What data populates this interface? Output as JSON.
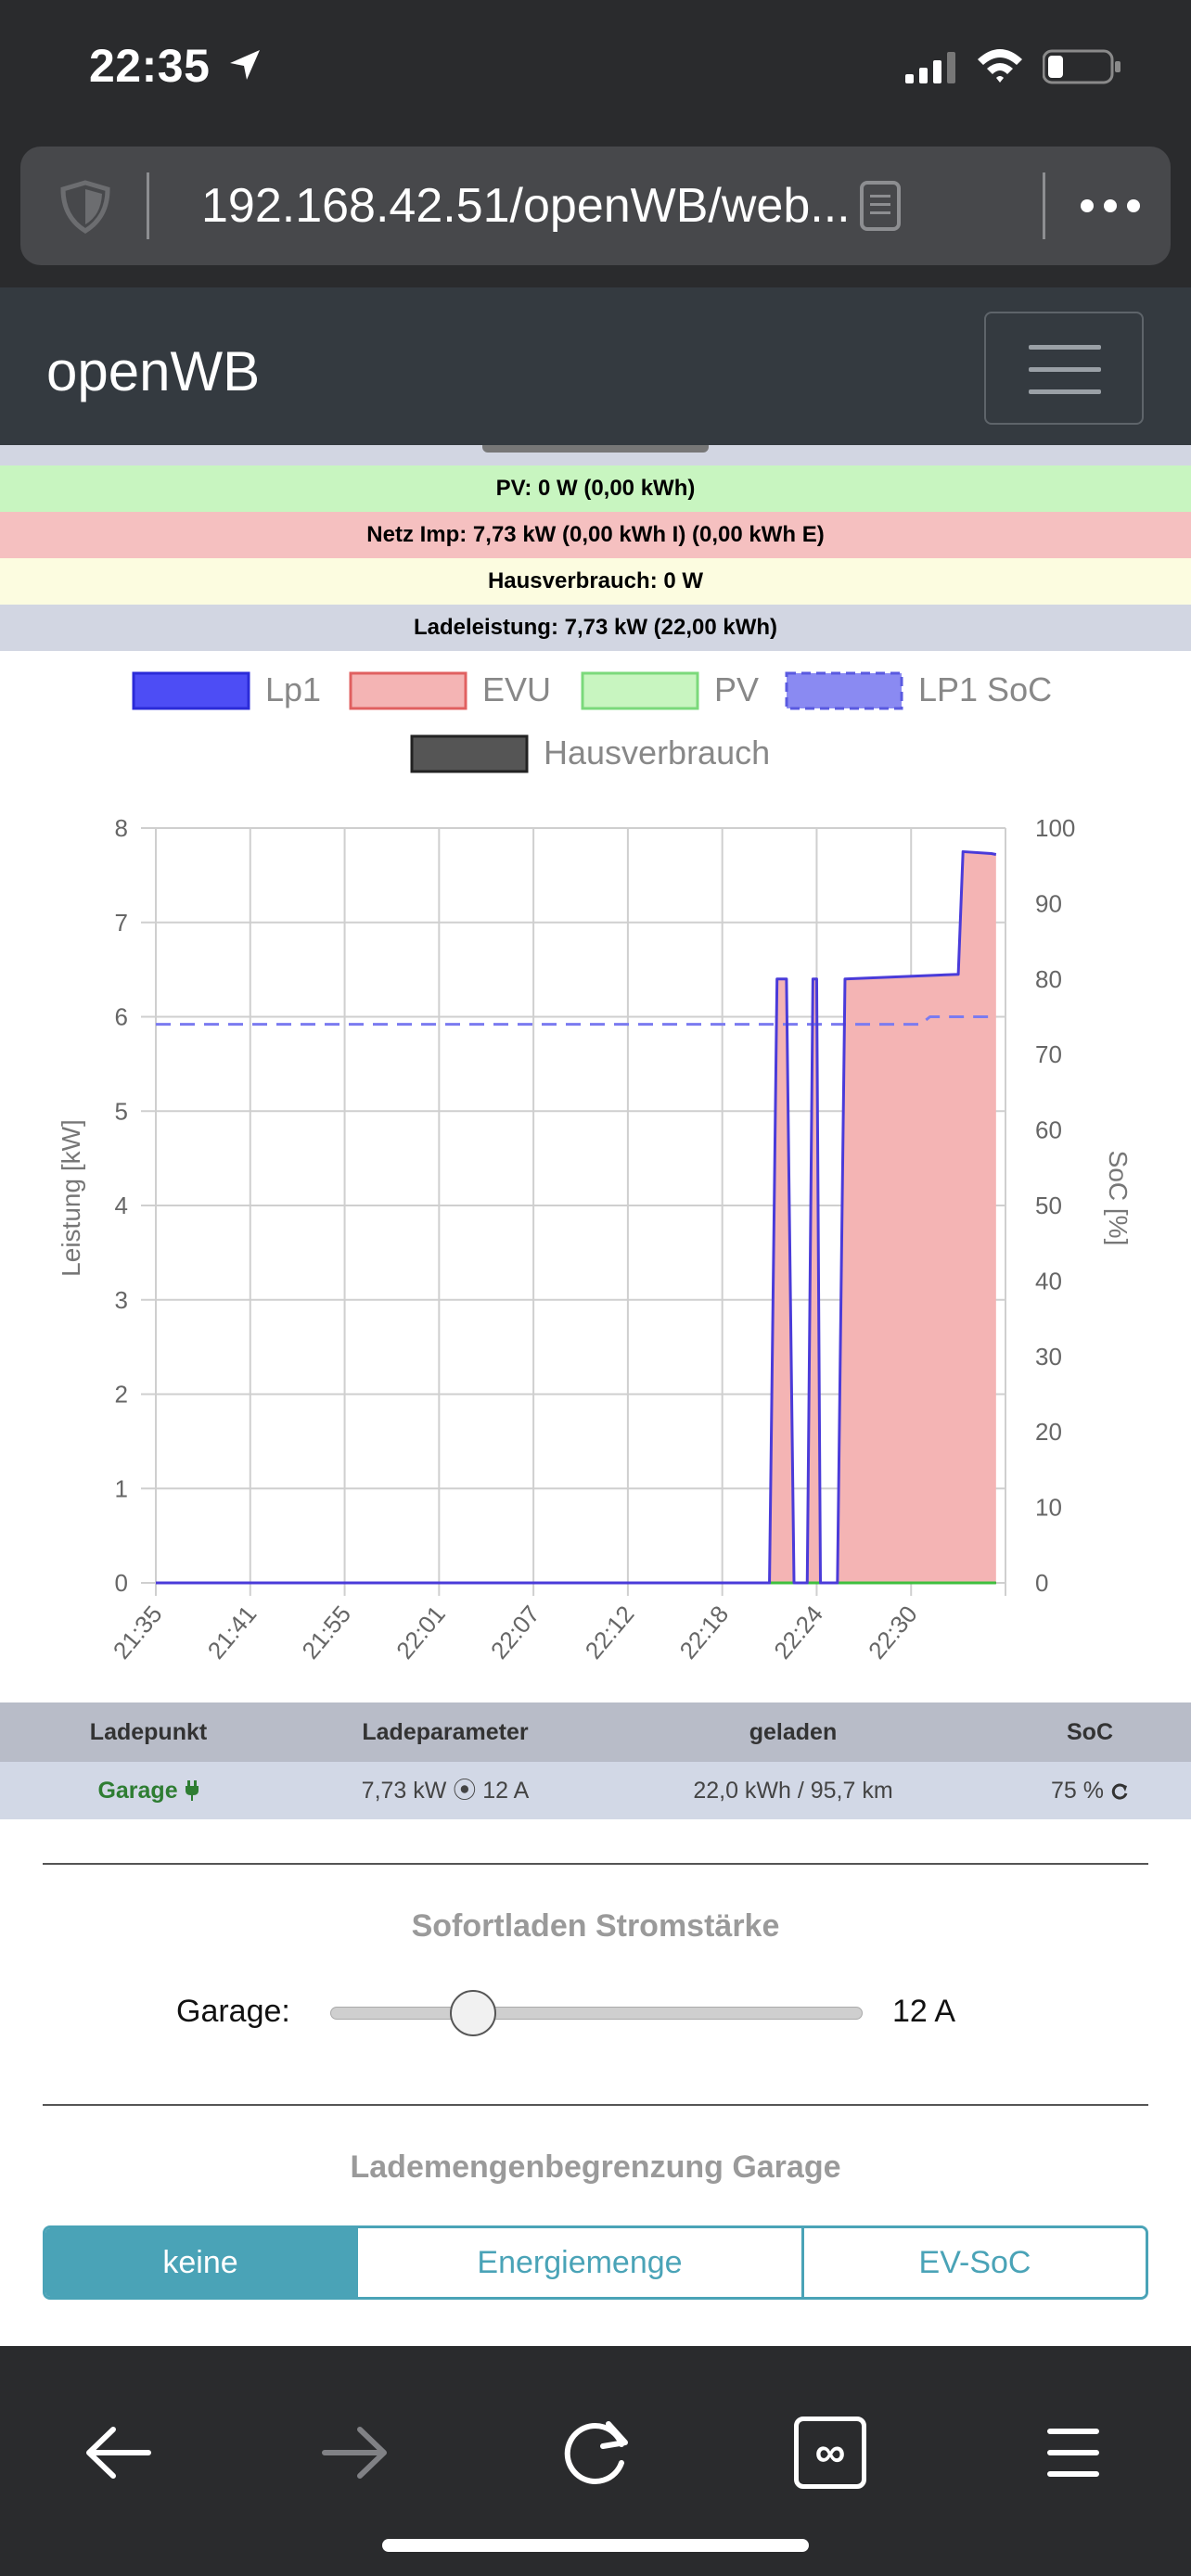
{
  "status_bar": {
    "time": "22:35"
  },
  "browser": {
    "url": "192.168.42.51/openWB/web..."
  },
  "navbar": {
    "brand": "openWB"
  },
  "info": {
    "pv": "PV: 0 W (0,00 kWh)",
    "netz": "Netz Imp: 7,73 kW (0,00 kWh I) (0,00 kWh E)",
    "haus": "Hausverbrauch: 0 W",
    "lade": "Ladeleistung: 7,73 kW (22,00 kWh)"
  },
  "colors": {
    "pv_bg": "#c8f5c0",
    "netz_bg": "#f5c0c0",
    "haus_bg": "#fcfce0",
    "lade_bg": "#d2d6e2",
    "lp1": "#4a3bd9",
    "evu": "#f4b4b4",
    "pv": "#3fbf3f",
    "soc": "#7b7bf0",
    "accent": "#4aa3b7"
  },
  "chart_data": {
    "type": "line",
    "legend": [
      "Lp1",
      "EVU",
      "PV",
      "LP1 SoC",
      "Hausverbrauch"
    ],
    "legend_placement": "top",
    "ylabel": "Leistung [kW]",
    "y2label": "SoC [%]",
    "ylim": [
      0,
      8
    ],
    "y2lim": [
      0,
      100
    ],
    "yticks": [
      "0",
      "1",
      "2",
      "3",
      "4",
      "5",
      "6",
      "7",
      "8"
    ],
    "y2ticks": [
      "0",
      "10",
      "20",
      "30",
      "40",
      "50",
      "60",
      "70",
      "80",
      "90",
      "100"
    ],
    "xticks": [
      "21:35",
      "21:41",
      "21:55",
      "22:01",
      "22:07",
      "22:12",
      "22:18",
      "22:24",
      "22:30"
    ],
    "grid": true,
    "x_span": [
      0,
      9
    ],
    "series": [
      {
        "name": "Lp1",
        "points": [
          [
            0,
            0
          ],
          [
            6.5,
            0
          ],
          [
            6.58,
            6.4
          ],
          [
            6.68,
            6.4
          ],
          [
            6.76,
            0
          ],
          [
            6.9,
            0
          ],
          [
            6.96,
            6.4
          ],
          [
            7.0,
            6.4
          ],
          [
            7.04,
            0
          ],
          [
            7.22,
            0
          ],
          [
            7.3,
            6.4
          ],
          [
            8.5,
            6.45
          ],
          [
            8.55,
            7.75
          ],
          [
            8.85,
            7.73
          ],
          [
            8.9,
            7.72
          ]
        ]
      },
      {
        "name": "EVU",
        "points": [
          [
            0,
            0
          ],
          [
            6.5,
            0
          ],
          [
            6.58,
            6.4
          ],
          [
            6.68,
            6.4
          ],
          [
            6.76,
            0
          ],
          [
            6.9,
            0
          ],
          [
            6.96,
            6.4
          ],
          [
            7.0,
            6.4
          ],
          [
            7.04,
            0
          ],
          [
            7.22,
            0
          ],
          [
            7.3,
            6.4
          ],
          [
            8.5,
            6.45
          ],
          [
            8.55,
            7.75
          ],
          [
            8.85,
            7.73
          ],
          [
            8.9,
            7.72
          ]
        ]
      },
      {
        "name": "PV",
        "points": [
          [
            0,
            0
          ],
          [
            8.9,
            0
          ]
        ]
      },
      {
        "name": "LP1 SoC",
        "points": [
          [
            0,
            74
          ],
          [
            8.1,
            74
          ],
          [
            8.2,
            75
          ],
          [
            8.9,
            75
          ]
        ]
      },
      {
        "name": "Hausverbrauch",
        "points": [
          [
            0,
            0
          ],
          [
            8.9,
            0
          ]
        ]
      }
    ]
  },
  "table": {
    "headers": [
      "Ladepunkt",
      "Ladeparameter",
      "geladen",
      "SoC"
    ],
    "row": {
      "name": "Garage",
      "plug_icon": "plug-icon",
      "param": "7,73 kW ⦿ 12 A",
      "charged": "22,0 kWh / 95,7 km",
      "soc": "75 %",
      "refresh_icon": "refresh-icon"
    }
  },
  "sofortladen": {
    "title": "Sofortladen Stromstärke",
    "label": "Garage:",
    "value": "12 A",
    "slider_fraction": 0.25
  },
  "lademengen": {
    "title": "Lademengenbegrenzung Garage",
    "options": [
      "keine",
      "Energiemenge",
      "EV-SoC"
    ],
    "selected": "keine"
  },
  "toolbar": {
    "icons": [
      "back-icon",
      "forward-icon",
      "reload-icon",
      "tabs-icon",
      "menu-icon"
    ],
    "tabs_glyph": "∞"
  }
}
